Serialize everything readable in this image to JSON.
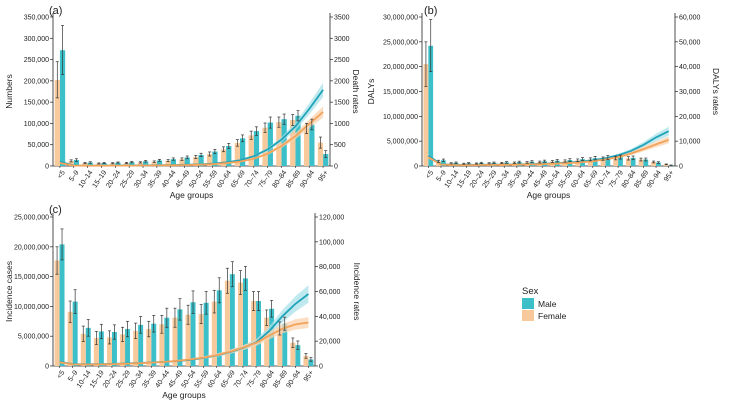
{
  "chart_data": [
    {
      "type": "bar",
      "panel_label": "(a)",
      "xlabel": "Age groups",
      "ylabel": "Numbers",
      "y2label": "Death rates",
      "ylim": [
        0,
        350000
      ],
      "y2lim": [
        0,
        3500
      ],
      "y_ticks": [
        "0",
        "50,000",
        "100,000",
        "150,000",
        "200,000",
        "250,000",
        "300,000",
        "350,000"
      ],
      "y2_ticks": [
        "0",
        "500",
        "1000",
        "1500",
        "2000",
        "2500",
        "3000",
        "3500"
      ],
      "categories": [
        "<5",
        "5–9",
        "10–14",
        "15–19",
        "20–24",
        "25–29",
        "30–34",
        "35–39",
        "40–44",
        "45–49",
        "50–54",
        "55–59",
        "60–64",
        "65–69",
        "70–74",
        "75–79",
        "80–84",
        "85–89",
        "90–94",
        "95+"
      ],
      "series": [
        {
          "name": "Male",
          "kind": "bar",
          "values": [
            272000,
            14000,
            8000,
            7000,
            8000,
            9000,
            11000,
            13000,
            16000,
            20000,
            26000,
            34000,
            47000,
            65000,
            82000,
            102000,
            110000,
            118000,
            97000,
            28000
          ],
          "err_high": [
            330000,
            17000,
            10000,
            8500,
            9500,
            11000,
            13000,
            15500,
            19000,
            23500,
            30000,
            39000,
            53000,
            73000,
            92000,
            115000,
            122000,
            130000,
            110000,
            36000
          ],
          "err_low": [
            215000,
            11000,
            6500,
            5800,
            6800,
            7500,
            9200,
            11000,
            13500,
            17000,
            22000,
            29000,
            41000,
            57000,
            72000,
            89000,
            98000,
            106000,
            85000,
            20000
          ]
        },
        {
          "name": "Female",
          "kind": "bar",
          "values": [
            202000,
            12000,
            7000,
            6000,
            6500,
            7000,
            8500,
            10000,
            12500,
            16000,
            21000,
            28000,
            39000,
            54000,
            72000,
            90000,
            103000,
            108000,
            88000,
            55000
          ],
          "err_high": [
            245000,
            14500,
            8500,
            7200,
            7800,
            8500,
            10000,
            12000,
            15000,
            19000,
            25000,
            33000,
            45000,
            62000,
            82000,
            101000,
            115000,
            121000,
            100000,
            68000
          ],
          "err_low": [
            160000,
            9500,
            5600,
            4900,
            5300,
            5700,
            7000,
            8200,
            10300,
            13200,
            17400,
            23500,
            33500,
            46500,
            62500,
            79000,
            91000,
            95000,
            76000,
            42000
          ]
        },
        {
          "name": "Male",
          "kind": "line",
          "values": [
            100,
            12,
            10,
            10,
            11,
            13,
            15,
            18,
            22,
            28,
            38,
            55,
            85,
            135,
            230,
            390,
            620,
            930,
            1340,
            1790
          ],
          "band_width": [
            20,
            3,
            3,
            3,
            3,
            3,
            3,
            3,
            4,
            5,
            6,
            8,
            11,
            16,
            25,
            40,
            60,
            90,
            130,
            170
          ]
        },
        {
          "name": "Female",
          "kind": "line",
          "values": [
            70,
            10,
            8,
            8,
            9,
            10,
            12,
            14,
            17,
            22,
            30,
            43,
            66,
            104,
            170,
            290,
            470,
            700,
            990,
            1270
          ],
          "band_width": [
            15,
            3,
            3,
            3,
            3,
            3,
            3,
            3,
            4,
            5,
            6,
            8,
            10,
            14,
            20,
            32,
            48,
            70,
            100,
            130
          ]
        }
      ]
    },
    {
      "type": "bar",
      "panel_label": "(b)",
      "xlabel": "Age groups",
      "ylabel": "DALYs",
      "y2label": "DALYs rates",
      "ylim": [
        0,
        30000000
      ],
      "y2lim": [
        0,
        60000
      ],
      "y_ticks": [
        "0",
        "5,000,000",
        "10,000,000",
        "15,000,000",
        "20,000,000",
        "25,000,000",
        "30,000,000"
      ],
      "y2_ticks": [
        "0",
        "10,000",
        "20,000",
        "30,000",
        "40,000",
        "50,000",
        "60,000"
      ],
      "categories": [
        "<5",
        "5–9",
        "10–14",
        "15–19",
        "20–24",
        "25–29",
        "30–34",
        "35–39",
        "40–44",
        "45–49",
        "50–54",
        "55–59",
        "60–64",
        "65–69",
        "70–74",
        "75–79",
        "80–84",
        "85–89",
        "90–94",
        "95+"
      ],
      "series": [
        {
          "name": "Male",
          "kind": "bar",
          "values": [
            24200000,
            1150000,
            650000,
            560000,
            610000,
            650000,
            720000,
            790000,
            870000,
            960000,
            1070000,
            1200000,
            1380000,
            1580000,
            1720000,
            1790000,
            1640000,
            1310000,
            700000,
            150000
          ],
          "err_high": [
            29500000,
            1400000,
            800000,
            690000,
            750000,
            800000,
            880000,
            970000,
            1070000,
            1180000,
            1310000,
            1470000,
            1690000,
            1940000,
            2110000,
            2190000,
            2010000,
            1600000,
            860000,
            200000
          ],
          "err_low": [
            19000000,
            900000,
            500000,
            430000,
            470000,
            500000,
            560000,
            610000,
            670000,
            740000,
            830000,
            930000,
            1070000,
            1220000,
            1330000,
            1390000,
            1270000,
            1020000,
            540000,
            100000
          ]
        },
        {
          "name": "Female",
          "kind": "bar",
          "values": [
            20500000,
            950000,
            540000,
            460000,
            500000,
            540000,
            600000,
            660000,
            730000,
            810000,
            900000,
            1010000,
            1160000,
            1340000,
            1490000,
            1600000,
            1540000,
            1300000,
            820000,
            330000
          ],
          "err_high": [
            25000000,
            1160000,
            660000,
            560000,
            610000,
            660000,
            730000,
            810000,
            890000,
            990000,
            1100000,
            1230000,
            1420000,
            1640000,
            1820000,
            1960000,
            1880000,
            1590000,
            1000000,
            410000
          ],
          "err_low": [
            16000000,
            740000,
            420000,
            360000,
            390000,
            420000,
            470000,
            510000,
            570000,
            630000,
            700000,
            790000,
            900000,
            1040000,
            1160000,
            1240000,
            1200000,
            1010000,
            640000,
            250000
          ]
        },
        {
          "name": "Male",
          "kind": "line",
          "values": [
            4200,
            700,
            500,
            450,
            480,
            520,
            580,
            660,
            760,
            900,
            1080,
            1350,
            1740,
            2300,
            3100,
            4300,
            6000,
            8500,
            11500,
            14000
          ],
          "band_width": [
            600,
            100,
            80,
            70,
            70,
            80,
            90,
            100,
            110,
            130,
            150,
            190,
            240,
            320,
            430,
            600,
            830,
            1150,
            1500,
            1800
          ]
        },
        {
          "name": "Female",
          "kind": "line",
          "values": [
            3500,
            600,
            420,
            380,
            400,
            440,
            490,
            560,
            640,
            760,
            910,
            1130,
            1450,
            1920,
            2600,
            3600,
            5000,
            6800,
            8700,
            10500
          ],
          "band_width": [
            500,
            90,
            70,
            60,
            60,
            70,
            80,
            90,
            100,
            110,
            130,
            160,
            200,
            270,
            360,
            500,
            690,
            920,
            1150,
            1400
          ]
        }
      ]
    },
    {
      "type": "bar",
      "panel_label": "(c)",
      "xlabel": "Age groups",
      "ylabel": "Incidence cases",
      "y2label": "Incidence rates",
      "ylim": [
        0,
        25000000
      ],
      "y2lim": [
        0,
        120000
      ],
      "y_ticks": [
        "0",
        "5,000,000",
        "10,000,000",
        "15,000,000",
        "20,000,000",
        "25,000,000"
      ],
      "y2_ticks": [
        "0",
        "20,000",
        "40,000",
        "60,000",
        "80,000",
        "100,000",
        "120,000"
      ],
      "categories": [
        "<5",
        "5–9",
        "10–14",
        "15–19",
        "20–24",
        "25–29",
        "30–34",
        "35–39",
        "40–44",
        "45–49",
        "50–54",
        "55–59",
        "60–64",
        "65–69",
        "70–74",
        "75–79",
        "80–84",
        "85–89",
        "90–94",
        "95+"
      ],
      "series": [
        {
          "name": "Male",
          "kind": "bar",
          "values": [
            20400000,
            10800000,
            6400000,
            5800000,
            5700000,
            6200000,
            6900000,
            7100000,
            8100000,
            9500000,
            10700000,
            10600000,
            12700000,
            15400000,
            14700000,
            10900000,
            9600000,
            7100000,
            3500000,
            1100000
          ],
          "err_high": [
            23000000,
            12800000,
            7800000,
            7000000,
            6900000,
            7500000,
            8300000,
            8500000,
            9700000,
            11300000,
            12600000,
            12500000,
            14800000,
            17500000,
            16700000,
            12500000,
            11000000,
            8200000,
            4200000,
            1400000
          ],
          "err_low": [
            17800000,
            8800000,
            5000000,
            4600000,
            4500000,
            4900000,
            5500000,
            5700000,
            6500000,
            7700000,
            8800000,
            8700000,
            10600000,
            13300000,
            12700000,
            9300000,
            8200000,
            6000000,
            2800000,
            800000
          ]
        },
        {
          "name": "Female",
          "kind": "bar",
          "values": [
            17700000,
            9100000,
            5400000,
            4700000,
            4800000,
            5300000,
            5900000,
            6200000,
            7000000,
            8100000,
            8600000,
            8700000,
            10800000,
            14300000,
            14000000,
            10900000,
            8100000,
            6300000,
            3900000,
            1700000
          ],
          "err_high": [
            20000000,
            10900000,
            6700000,
            5800000,
            5900000,
            6500000,
            7200000,
            7500000,
            8500000,
            9700000,
            10200000,
            10300000,
            12700000,
            16400000,
            16000000,
            12500000,
            9400000,
            7400000,
            4700000,
            2100000
          ],
          "err_low": [
            15400000,
            7300000,
            4100000,
            3600000,
            3700000,
            4100000,
            4600000,
            4900000,
            5500000,
            6500000,
            7000000,
            7100000,
            8900000,
            12200000,
            12000000,
            9300000,
            6800000,
            5200000,
            3100000,
            1300000
          ]
        },
        {
          "name": "Male",
          "kind": "line",
          "values": [
            3500,
            1500,
            1400,
            1500,
            1700,
            2000,
            2400,
            2800,
            3300,
            4000,
            5000,
            6500,
            8500,
            11200,
            14500,
            19000,
            28000,
            40000,
            50000,
            58000
          ],
          "band_width": [
            600,
            250,
            230,
            240,
            270,
            320,
            380,
            440,
            520,
            620,
            760,
            960,
            1200,
            1550,
            1950,
            2500,
            3600,
            5000,
            6200,
            7000
          ]
        },
        {
          "name": "Female",
          "kind": "line",
          "values": [
            3000,
            1300,
            1200,
            1300,
            1500,
            1800,
            2200,
            2700,
            3300,
            4200,
            5300,
            6800,
            8800,
            11500,
            14800,
            18500,
            24500,
            30000,
            33500,
            35000
          ],
          "band_width": [
            500,
            220,
            200,
            220,
            250,
            300,
            360,
            430,
            520,
            640,
            790,
            990,
            1230,
            1560,
            1960,
            2400,
            3100,
            3750,
            4200,
            4400
          ]
        }
      ]
    }
  ],
  "legend": {
    "title": "Sex",
    "items": [
      {
        "label": "Male",
        "color": "#3bbfc8"
      },
      {
        "label": "Female",
        "color": "#f8c99a"
      }
    ]
  },
  "colors": {
    "male_bar": "#3bbfc8",
    "female_bar": "#f8c99a",
    "male_line": "#1fa3b8",
    "female_line": "#f3a35a",
    "male_band": "#a9e1ea",
    "female_band": "#fad3b0",
    "error_bar": "#333333"
  }
}
